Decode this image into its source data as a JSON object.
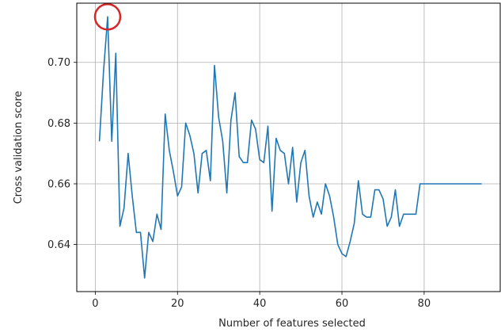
{
  "chart_data": {
    "type": "line",
    "title": "",
    "xlabel": "Number of features selected",
    "ylabel": "Cross validation score",
    "xlim": [
      -4.5,
      98.5
    ],
    "ylim": [
      0.6245,
      0.7195
    ],
    "xticks": [
      0,
      20,
      40,
      60,
      80
    ],
    "xtick_labels": [
      "0",
      "20",
      "40",
      "60",
      "80"
    ],
    "yticks": [
      0.64,
      0.66,
      0.68,
      0.7
    ],
    "ytick_labels": [
      "0.64",
      "0.66",
      "0.68",
      "0.70"
    ],
    "grid": true,
    "line_color": "#1f77b4",
    "highlight": {
      "shape": "circle",
      "color": "#d62728",
      "x": 3,
      "y": 0.715
    },
    "series": [
      {
        "x": [
          1,
          2,
          3,
          4,
          5,
          6,
          7,
          8,
          9,
          10,
          11,
          12,
          13,
          14,
          15,
          16,
          17,
          18,
          19,
          20,
          21,
          22,
          23,
          24,
          25,
          26,
          27,
          28,
          29,
          30,
          31,
          32,
          33,
          34,
          35,
          36,
          37,
          38,
          39,
          40,
          41,
          42,
          43,
          44,
          45,
          46,
          47,
          48,
          49,
          50,
          51,
          52,
          53,
          54,
          55,
          56,
          57,
          58,
          59,
          60,
          61,
          62,
          63,
          64,
          65,
          66,
          67,
          68,
          69,
          70,
          71,
          72,
          73,
          74,
          75,
          76,
          77,
          78,
          79,
          80,
          81,
          82,
          83,
          84,
          85,
          86,
          87,
          88,
          89,
          90,
          91,
          92,
          93,
          94
        ],
        "values": [
          0.674,
          0.697,
          0.715,
          0.674,
          0.703,
          0.646,
          0.652,
          0.67,
          0.656,
          0.644,
          0.644,
          0.629,
          0.644,
          0.641,
          0.65,
          0.645,
          0.683,
          0.671,
          0.664,
          0.656,
          0.659,
          0.68,
          0.676,
          0.67,
          0.657,
          0.67,
          0.671,
          0.661,
          0.699,
          0.682,
          0.674,
          0.657,
          0.681,
          0.69,
          0.669,
          0.667,
          0.667,
          0.681,
          0.678,
          0.668,
          0.667,
          0.679,
          0.651,
          0.675,
          0.671,
          0.67,
          0.66,
          0.672,
          0.654,
          0.667,
          0.671,
          0.656,
          0.649,
          0.654,
          0.65,
          0.66,
          0.656,
          0.649,
          0.64,
          0.637,
          0.636,
          0.641,
          0.647,
          0.661,
          0.65,
          0.649,
          0.649,
          0.658,
          0.658,
          0.655,
          0.646,
          0.649,
          0.658,
          0.646,
          0.65,
          0.65,
          0.65,
          0.65,
          0.66,
          0.66,
          0.66,
          0.66,
          0.66,
          0.66,
          0.66,
          0.66,
          0.66,
          0.66,
          0.66,
          0.66,
          0.66,
          0.66,
          0.66,
          0.66
        ]
      }
    ]
  }
}
